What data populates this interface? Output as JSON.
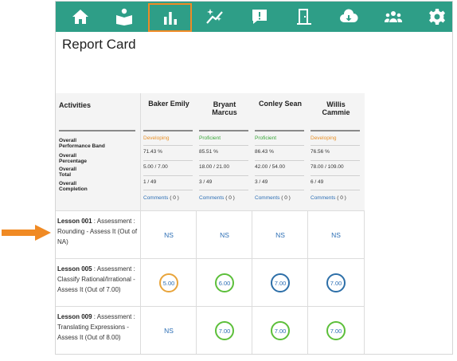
{
  "nav": {
    "items": [
      {
        "icon": "home-icon"
      },
      {
        "icon": "book-reader-icon"
      },
      {
        "icon": "bar-chart-icon",
        "active": true
      },
      {
        "icon": "sparkle-trend-icon"
      },
      {
        "icon": "message-alert-icon"
      },
      {
        "icon": "door-exit-icon"
      },
      {
        "icon": "cloud-download-icon"
      },
      {
        "icon": "users-group-icon"
      },
      {
        "icon": "settings-gear-icon"
      }
    ],
    "active_color": "#f08a24",
    "bar_color": "#2e9e87"
  },
  "page": {
    "title": "Report Card"
  },
  "header": {
    "activities_label": "Activities",
    "metrics": [
      {
        "line1": "Overall",
        "line2": "Performance Band"
      },
      {
        "line1": "Overall",
        "line2": "Percentage"
      },
      {
        "line1": "Overall",
        "line2": "Total"
      },
      {
        "line1": "Overall",
        "line2": "Completion"
      }
    ]
  },
  "students": [
    {
      "name": "Baker Emily",
      "band": "Developing",
      "band_color": "#e8912a",
      "percentage": "71.43 %",
      "total": "5.00 / 7.00",
      "completion": "1 / 49",
      "comments_label": "Comments",
      "comments_count": "( 0 )"
    },
    {
      "name": "Bryant Marcus",
      "band": "Proficient",
      "band_color": "#3aa63a",
      "percentage": "85.51 %",
      "total": "18.00 / 21.00",
      "completion": "3 / 49",
      "comments_label": "Comments",
      "comments_count": "( 0 )"
    },
    {
      "name": "Conley Sean",
      "band": "Proficient",
      "band_color": "#3aa63a",
      "percentage": "86.43 %",
      "total": "42.00 / 54.00",
      "completion": "3 / 49",
      "comments_label": "Comments",
      "comments_count": "( 0 )"
    },
    {
      "name": "Willis Cammie",
      "band": "Developing",
      "band_color": "#e8912a",
      "percentage": "76.56 %",
      "total": "78.00 / 109.00",
      "completion": "6 / 49",
      "comments_label": "Comments",
      "comments_count": "( 0 )"
    }
  ],
  "rows": [
    {
      "lesson": "Lesson 001",
      "detail": " : Assessment : Rounding - Assess It (Out of NA)",
      "scores": [
        {
          "value": "NS"
        },
        {
          "value": "NS"
        },
        {
          "value": "NS"
        },
        {
          "value": "NS"
        }
      ]
    },
    {
      "lesson": "Lesson 005",
      "detail": " : Assessment : Classify Rational/Irrational - Assess It (Out of 7.00)",
      "scores": [
        {
          "value": "5.00",
          "color": "#e8a43a"
        },
        {
          "value": "6.00",
          "color": "#5cbf3a"
        },
        {
          "value": "7.00",
          "color": "#2d6fa8"
        },
        {
          "value": "7.00",
          "color": "#2d6fa8"
        }
      ]
    },
    {
      "lesson": "Lesson 009",
      "detail": " : Assessment : Translating Expressions - Assess It (Out of 8.00)",
      "scores": [
        {
          "value": "NS"
        },
        {
          "value": "7.00",
          "color": "#5cbf3a"
        },
        {
          "value": "7.00",
          "color": "#5cbf3a"
        },
        {
          "value": "7.00",
          "color": "#5cbf3a"
        }
      ]
    }
  ],
  "callout_arrow": {
    "color": "#f08a24"
  }
}
